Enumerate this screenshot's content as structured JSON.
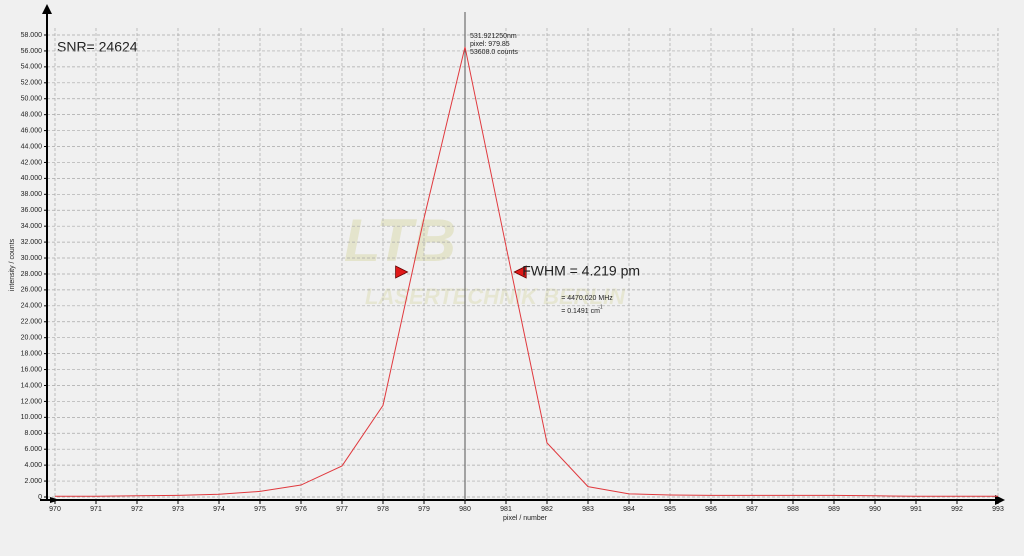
{
  "chart_data": {
    "type": "line",
    "color": "#e0393e",
    "x": [
      970,
      971,
      972,
      973,
      974,
      975,
      976,
      977,
      978,
      979,
      980,
      981,
      982,
      983,
      984,
      985,
      986,
      987,
      988,
      989,
      990,
      991,
      992,
      993
    ],
    "values": [
      100,
      100,
      150,
      200,
      350,
      700,
      1500,
      3900,
      11500,
      35000,
      56500,
      31500,
      6800,
      1300,
      400,
      250,
      200,
      200,
      200,
      200,
      150,
      100,
      100,
      100
    ],
    "xlim": [
      970,
      993
    ],
    "ylim": [
      0,
      58000
    ],
    "xticks": [
      970,
      971,
      972,
      973,
      974,
      975,
      976,
      977,
      978,
      979,
      980,
      981,
      982,
      983,
      984,
      985,
      986,
      987,
      988,
      989,
      990,
      991,
      992,
      993
    ],
    "yticks": [
      0,
      {
        "value": 2000,
        "label": "2.000"
      },
      {
        "value": 4000,
        "label": "4.000"
      },
      {
        "value": 6000,
        "label": "6.000"
      },
      {
        "value": 8000,
        "label": "8.000"
      },
      {
        "value": 10000,
        "label": "10.000"
      },
      {
        "value": 12000,
        "label": "12.000"
      },
      {
        "value": 14000,
        "label": "14.000"
      },
      {
        "value": 16000,
        "label": "16.000"
      },
      {
        "value": 18000,
        "label": "18.000"
      },
      {
        "value": 20000,
        "label": "20.000"
      },
      {
        "value": 22000,
        "label": "22.000"
      },
      {
        "value": 24000,
        "label": "24.000"
      },
      {
        "value": 26000,
        "label": "26.000"
      },
      {
        "value": 28000,
        "label": "28.000"
      },
      {
        "value": 30000,
        "label": "30.000"
      },
      {
        "value": 32000,
        "label": "32.000"
      },
      {
        "value": 34000,
        "label": "34.000"
      },
      {
        "value": 36000,
        "label": "36.000"
      },
      {
        "value": 38000,
        "label": "38.000"
      },
      {
        "value": 40000,
        "label": "40.000"
      },
      {
        "value": 42000,
        "label": "42.000"
      },
      {
        "value": 44000,
        "label": "44.000"
      },
      {
        "value": 46000,
        "label": "46.000"
      },
      {
        "value": 48000,
        "label": "48.000"
      },
      {
        "value": 50000,
        "label": "50.000"
      },
      {
        "value": 52000,
        "label": "52.000"
      },
      {
        "value": 54000,
        "label": "54.000"
      },
      {
        "value": 56000,
        "label": "56.000"
      },
      {
        "value": 58000,
        "label": "58.000"
      }
    ],
    "grid": true,
    "xlabel": "pixel / number",
    "ylabel": "intensity / counts",
    "cursor_x": 980,
    "cursor_label": [
      "531.921250nm",
      "pixel:  979.85",
      "53608.0 counts"
    ],
    "snr": "SNR= 24624",
    "fwhm_markers": {
      "x": [
        978.6,
        981.2
      ],
      "y": [
        28250,
        28250
      ]
    },
    "fwhm": "FWHM = 4.219 pm",
    "fwhm_freq": "= 4470.020 MHz",
    "fwhm_wavenumber": "= 0.1491 cm",
    "fwhm_wavenumber_unit": "-1",
    "watermark": [
      "LTB",
      "LASERTECHNIK BERLIN"
    ]
  }
}
